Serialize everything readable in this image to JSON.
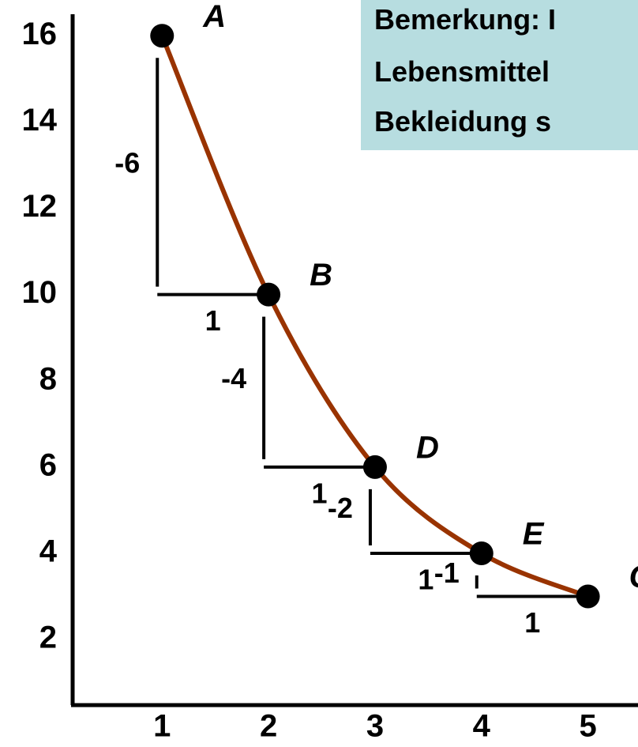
{
  "chart_data": {
    "type": "line",
    "x": [
      1,
      2,
      3,
      4,
      5
    ],
    "series": [
      {
        "color": "#993300",
        "values": [
          16,
          10,
          6,
          4,
          3
        ]
      }
    ],
    "point_labels": [
      "A",
      "B",
      "D",
      "E",
      "G"
    ],
    "steps": [
      {
        "dy": -6,
        "dx": 1
      },
      {
        "dy": -4,
        "dx": 1
      },
      {
        "dy": -2,
        "dx": 1
      },
      {
        "dy": -1,
        "dx": 1
      }
    ],
    "xlim": [
      0.16,
      5.47
    ],
    "ylim": [
      0.48,
      16.5
    ],
    "xticks": [
      1,
      2,
      3,
      4,
      5
    ],
    "yticks": [
      2,
      4,
      6,
      8,
      10,
      12,
      14,
      16
    ],
    "note": [
      "Bemerkung: I",
      "Lebensmittel",
      "Bekleidung s"
    ]
  }
}
